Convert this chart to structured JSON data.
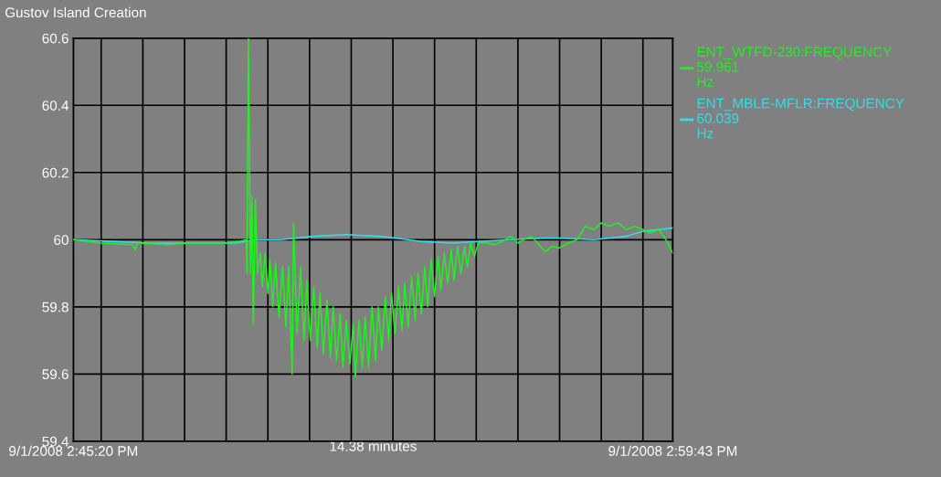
{
  "chart_data": {
    "type": "line",
    "title": "Gustov Island Creation",
    "xlabel": "14.38 minutes",
    "xlim": [
      "2008-09-01T14:45:20",
      "2008-09-01T14:59:43"
    ],
    "xticks": [
      {
        "value": "2008-09-01T14:45:20",
        "label": "9/1/2008 2:45:20 PM"
      },
      {
        "value": "2008-09-01T14:46:00",
        "label": null
      },
      {
        "value": "2008-09-01T14:47:00",
        "label": null
      },
      {
        "value": "2008-09-01T14:48:00",
        "label": null
      },
      {
        "value": "2008-09-01T14:49:00",
        "label": null
      },
      {
        "value": "2008-09-01T14:50:00",
        "label": null
      },
      {
        "value": "2008-09-01T14:51:00",
        "label": null
      },
      {
        "value": "2008-09-01T14:52:00",
        "label": null
      },
      {
        "value": "2008-09-01T14:53:00",
        "label": null
      },
      {
        "value": "2008-09-01T14:54:00",
        "label": null
      },
      {
        "value": "2008-09-01T14:55:00",
        "label": null
      },
      {
        "value": "2008-09-01T14:56:00",
        "label": null
      },
      {
        "value": "2008-09-01T14:57:00",
        "label": null
      },
      {
        "value": "2008-09-01T14:58:00",
        "label": null
      },
      {
        "value": "2008-09-01T14:59:00",
        "label": null
      },
      {
        "value": "2008-09-01T14:59:43",
        "label": "9/1/2008 2:59:43 PM"
      }
    ],
    "ylim": [
      59.4,
      60.6
    ],
    "yticks": [
      59.4,
      59.6,
      59.8,
      60,
      60.2,
      60.4,
      60.6
    ],
    "grid": true,
    "legend": "top right",
    "line_style": "solid",
    "annotations": [
      "59.961",
      "Hz",
      "60.039",
      "Hz"
    ],
    "series": [
      {
        "name": "ENT_WTFD-230:FREQUENCY",
        "color": "#22ee22",
        "x": [
          "2008-09-01T14:45:20",
          "2008-09-01T14:45:58",
          "2008-09-01T14:46:45",
          "2008-09-01T14:46:49",
          "2008-09-01T14:46:52",
          "2008-09-01T14:47:33",
          "2008-09-01T14:48:08",
          "2008-09-01T14:48:56",
          "2008-09-01T14:49:19",
          "2008-09-01T14:49:29",
          "2008-09-01T14:49:30",
          "2008-09-01T14:49:32",
          "2008-09-01T14:49:35",
          "2008-09-01T14:49:37",
          "2008-09-01T14:49:39",
          "2008-09-01T14:49:42",
          "2008-09-01T14:49:45",
          "2008-09-01T14:49:49",
          "2008-09-01T14:49:52",
          "2008-09-01T14:49:56",
          "2008-09-01T14:50:00",
          "2008-09-01T14:50:03",
          "2008-09-01T14:50:07",
          "2008-09-01T14:50:11",
          "2008-09-01T14:50:16",
          "2008-09-01T14:50:21",
          "2008-09-01T14:50:26",
          "2008-09-01T14:50:30",
          "2008-09-01T14:50:35",
          "2008-09-01T14:50:37",
          "2008-09-01T14:50:42",
          "2008-09-01T14:50:47",
          "2008-09-01T14:50:52",
          "2008-09-01T14:50:56",
          "2008-09-01T14:51:01",
          "2008-09-01T14:51:06",
          "2008-09-01T14:51:11",
          "2008-09-01T14:51:15",
          "2008-09-01T14:51:20",
          "2008-09-01T14:51:25",
          "2008-09-01T14:51:30",
          "2008-09-01T14:51:34",
          "2008-09-01T14:51:39",
          "2008-09-01T14:51:44",
          "2008-09-01T14:51:48",
          "2008-09-01T14:51:53",
          "2008-09-01T14:51:58",
          "2008-09-01T14:52:03",
          "2008-09-01T14:52:06",
          "2008-09-01T14:52:11",
          "2008-09-01T14:52:16",
          "2008-09-01T14:52:20",
          "2008-09-01T14:52:25",
          "2008-09-01T14:52:30",
          "2008-09-01T14:52:35",
          "2008-09-01T14:52:39",
          "2008-09-01T14:52:44",
          "2008-09-01T14:52:49",
          "2008-09-01T14:52:54",
          "2008-09-01T14:52:58",
          "2008-09-01T14:53:03",
          "2008-09-01T14:53:08",
          "2008-09-01T14:53:13",
          "2008-09-01T14:53:17",
          "2008-09-01T14:53:22",
          "2008-09-01T14:53:27",
          "2008-09-01T14:53:32",
          "2008-09-01T14:53:36",
          "2008-09-01T14:53:41",
          "2008-09-01T14:53:46",
          "2008-09-01T14:53:50",
          "2008-09-01T14:53:55",
          "2008-09-01T14:54:00",
          "2008-09-01T14:54:05",
          "2008-09-01T14:54:09",
          "2008-09-01T14:54:14",
          "2008-09-01T14:54:19",
          "2008-09-01T14:54:24",
          "2008-09-01T14:54:28",
          "2008-09-01T14:54:33",
          "2008-09-01T14:54:38",
          "2008-09-01T14:54:43",
          "2008-09-01T14:54:47",
          "2008-09-01T14:54:52",
          "2008-09-01T14:54:57",
          "2008-09-01T14:55:03",
          "2008-09-01T14:55:15",
          "2008-09-01T14:55:26",
          "2008-09-01T14:55:38",
          "2008-09-01T14:55:50",
          "2008-09-01T14:56:00",
          "2008-09-01T14:56:08",
          "2008-09-01T14:56:20",
          "2008-09-01T14:56:32",
          "2008-09-01T14:56:40",
          "2008-09-01T14:56:49",
          "2008-09-01T14:56:59",
          "2008-09-01T14:57:13",
          "2008-09-01T14:57:25",
          "2008-09-01T14:57:37",
          "2008-09-01T14:57:49",
          "2008-09-01T14:58:00",
          "2008-09-01T14:58:12",
          "2008-09-01T14:58:24",
          "2008-09-01T14:58:36",
          "2008-09-01T14:58:48",
          "2008-09-01T14:59:00",
          "2008-09-01T14:59:11",
          "2008-09-01T14:59:23",
          "2008-09-01T14:59:33",
          "2008-09-01T14:59:43"
        ],
        "values": [
          60.0,
          59.99,
          59.985,
          59.97,
          59.99,
          59.985,
          59.99,
          59.99,
          59.995,
          60.0,
          59.9,
          60.6,
          59.9,
          60.13,
          59.75,
          60.12,
          59.9,
          59.96,
          59.86,
          59.96,
          59.84,
          59.94,
          59.8,
          59.93,
          59.77,
          59.92,
          59.74,
          59.92,
          59.6,
          60.05,
          59.72,
          59.92,
          59.7,
          59.88,
          59.7,
          59.86,
          59.68,
          59.84,
          59.66,
          59.82,
          59.65,
          59.8,
          59.64,
          59.78,
          59.62,
          59.76,
          59.63,
          59.75,
          59.59,
          59.76,
          59.62,
          59.77,
          59.62,
          59.8,
          59.64,
          59.8,
          59.67,
          59.83,
          59.7,
          59.84,
          59.72,
          59.86,
          59.73,
          59.87,
          59.74,
          59.89,
          59.76,
          59.9,
          59.78,
          59.92,
          59.8,
          59.94,
          59.83,
          59.95,
          59.85,
          59.96,
          59.87,
          59.97,
          59.88,
          59.98,
          59.9,
          59.98,
          59.92,
          59.99,
          59.95,
          59.99,
          59.99,
          59.985,
          59.995,
          60.01,
          59.99,
          60.0,
          60.01,
          59.98,
          59.965,
          59.98,
          59.975,
          59.99,
          60.0,
          60.04,
          60.03,
          60.05,
          60.04,
          60.05,
          60.03,
          60.04,
          60.03,
          60.02,
          60.03,
          60.0,
          59.96
        ]
      },
      {
        "name": "ENT_MBLE-MFLR:FREQUENCY",
        "color": "#33dde8",
        "x": [
          "2008-09-01T14:45:20",
          "2008-09-01T14:47:09",
          "2008-09-01T14:48:56",
          "2008-09-01T14:49:13",
          "2008-09-01T14:49:43",
          "2008-09-01T14:50:18",
          "2008-09-01T14:51:06",
          "2008-09-01T14:51:53",
          "2008-09-01T14:52:41",
          "2008-09-01T14:53:04",
          "2008-09-01T14:53:40",
          "2008-09-01T14:54:27",
          "2008-09-01T14:55:03",
          "2008-09-01T14:55:50",
          "2008-09-01T14:56:37",
          "2008-09-01T14:57:01",
          "2008-09-01T14:57:49",
          "2008-09-01T14:58:12",
          "2008-09-01T14:58:36",
          "2008-09-01T14:59:00",
          "2008-09-01T14:59:23",
          "2008-09-01T14:59:43"
        ],
        "values": [
          60.0,
          59.99,
          59.99,
          59.99,
          60.0,
          60.0,
          60.01,
          60.015,
          60.01,
          60.005,
          59.995,
          59.99,
          59.995,
          60.0,
          60.005,
          60.005,
          60.0,
          60.005,
          60.01,
          60.025,
          60.03,
          60.035
        ]
      }
    ]
  }
}
